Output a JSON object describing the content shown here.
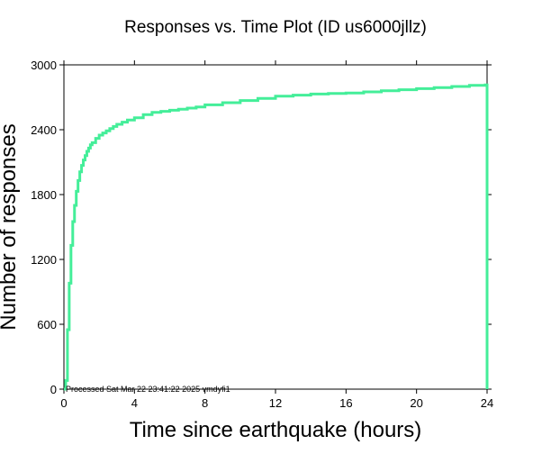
{
  "chart_data": {
    "type": "line",
    "title": "Responses vs. Time Plot (ID us6000jllz)",
    "xlabel": "Time since earthquake (hours)",
    "ylabel": "Number of responses",
    "xlim": [
      0,
      24
    ],
    "ylim": [
      0,
      3000
    ],
    "xticks": [
      0,
      4,
      8,
      12,
      16,
      20,
      24
    ],
    "yticks": [
      0,
      600,
      1200,
      1800,
      2400,
      3000
    ],
    "grid": false,
    "line_color": "#44ee99",
    "footnote": "Processed Sat Mar 22 23:41:22 2025 vmdyfi1",
    "series": [
      {
        "step": true,
        "x": [
          0.0,
          0.1,
          0.2,
          0.3,
          0.4,
          0.5,
          0.6,
          0.7,
          0.8,
          0.9,
          1.0,
          1.1,
          1.2,
          1.3,
          1.4,
          1.5,
          1.6,
          1.8,
          2.0,
          2.2,
          2.4,
          2.6,
          2.8,
          3.0,
          3.3,
          3.6,
          4.0,
          4.5,
          5.0,
          5.5,
          6.0,
          6.5,
          7.0,
          7.5,
          8.0,
          9.0,
          10.0,
          11.0,
          12.0,
          13.0,
          14.0,
          15.0,
          16.0,
          17.0,
          18.0,
          19.0,
          20.0,
          21.0,
          22.0,
          23.0,
          23.9,
          24.0
        ],
        "y": [
          0,
          80,
          550,
          980,
          1330,
          1550,
          1700,
          1830,
          1930,
          2010,
          2070,
          2120,
          2160,
          2200,
          2230,
          2260,
          2280,
          2320,
          2350,
          2370,
          2390,
          2410,
          2430,
          2450,
          2470,
          2490,
          2510,
          2540,
          2560,
          2570,
          2580,
          2590,
          2600,
          2610,
          2630,
          2650,
          2670,
          2690,
          2710,
          2720,
          2730,
          2735,
          2740,
          2750,
          2760,
          2770,
          2780,
          2790,
          2800,
          2810,
          2815,
          0
        ]
      }
    ]
  }
}
